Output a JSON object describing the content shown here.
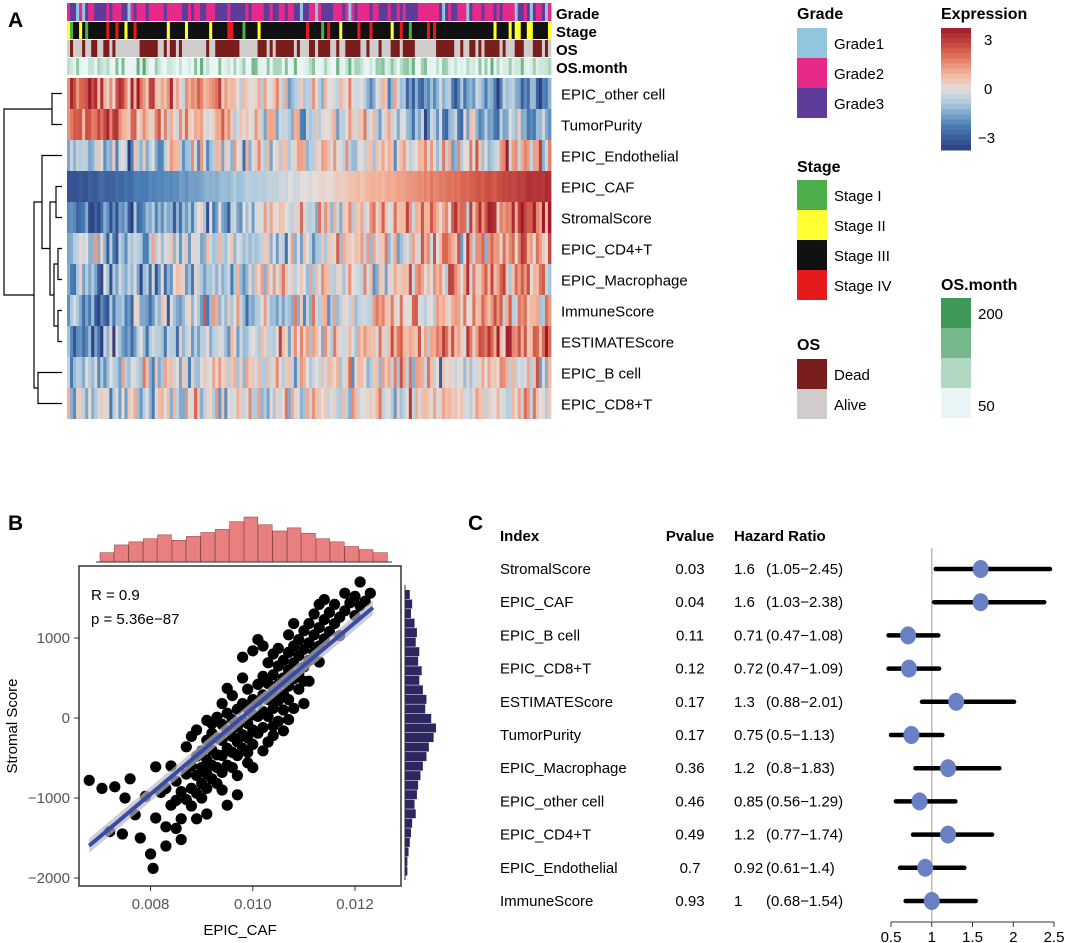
{
  "panels": {
    "a": "A",
    "b": "B",
    "c": "C"
  },
  "colors": {
    "grade1": "#92c5de",
    "grade2": "#e7298a",
    "grade3": "#5e3c99",
    "stage1": "#4daf4a",
    "stage2": "#ffff33",
    "stage3": "#111111",
    "stage4": "#e41a1c",
    "dead": "#7a1d1d",
    "alive": "#d1cccc",
    "expr_low": "#313695",
    "expr_mid": "#e8e8e8",
    "expr_high": "#a50026",
    "os_high": "#3f9a5a",
    "os_low": "#eaf6f5",
    "scatter_point": "#000000",
    "fit_line": "#3b4ba3",
    "top_hist": "#e88080",
    "right_hist": "#2d2760",
    "forest_point": "#6a80c4",
    "forest_line": "#000000",
    "forest_ref": "#c8b6b6"
  },
  "chart_data": [
    {
      "type": "heatmap",
      "panel": "A",
      "title": "",
      "annotation_tracks": [
        "Grade",
        "Stage",
        "OS",
        "OS.month"
      ],
      "rows": [
        "EPIC_other cell",
        "TumorPurity",
        "EPIC_Endothelial",
        "EPIC_CAF",
        "StromalScore",
        "EPIC_CD4+T",
        "EPIC_Macrophage",
        "ImmuneScore",
        "ESTIMATEScore",
        "EPIC_B cell",
        "EPIC_CD8+T"
      ],
      "column_order": "sorted by EPIC_CAF ascending",
      "row_trend_with_EPIC_CAF": [
        -0.7,
        -0.6,
        0.3,
        1.0,
        0.85,
        0.35,
        0.45,
        0.4,
        0.6,
        0.15,
        0.1
      ],
      "legends": {
        "grade": {
          "title": "Grade",
          "items": [
            "Grade1",
            "Grade2",
            "Grade3"
          ]
        },
        "stage": {
          "title": "Stage",
          "items": [
            "Stage I",
            "Stage II",
            "Stage III",
            "Stage IV"
          ]
        },
        "os": {
          "title": "OS",
          "items": [
            "Dead",
            "Alive"
          ]
        },
        "expression": {
          "title": "Expression",
          "ticks": [
            "3",
            "0",
            "−3"
          ],
          "range": [
            -3,
            3
          ]
        },
        "os_month": {
          "title": "OS.month",
          "ticks": [
            "200",
            "50"
          ]
        }
      }
    },
    {
      "type": "scatter",
      "panel": "B",
      "xlabel": "EPIC_CAF",
      "ylabel": "Stromal Score",
      "xlim": [
        0.0066,
        0.0129
      ],
      "ylim": [
        -2100,
        1900
      ],
      "xticks": [
        0.008,
        0.01,
        0.012
      ],
      "xtick_labels": [
        "0.008",
        "0.010",
        "0.012"
      ],
      "yticks": [
        -2000,
        -1000,
        0,
        1000
      ],
      "ytick_labels": [
        "−2000",
        "−1000",
        "0",
        "1000"
      ],
      "annotation": {
        "r": "R = 0.9",
        "p": "p = 5.36e−87"
      },
      "fit": {
        "slope": 536000,
        "intercept": -5240
      },
      "points": [
        [
          0.0068,
          -780
        ],
        [
          0.00705,
          -880
        ],
        [
          0.0073,
          -860
        ],
        [
          0.0072,
          -1420
        ],
        [
          0.00745,
          -1450
        ],
        [
          0.0075,
          -1000
        ],
        [
          0.0076,
          -760
        ],
        [
          0.0077,
          -1210
        ],
        [
          0.0078,
          -1500
        ],
        [
          0.0079,
          -980
        ],
        [
          0.008,
          -1700
        ],
        [
          0.00805,
          -1880
        ],
        [
          0.0081,
          -1250
        ],
        [
          0.0081,
          -610
        ],
        [
          0.0082,
          -930
        ],
        [
          0.0083,
          -880
        ],
        [
          0.0083,
          -1600
        ],
        [
          0.0084,
          -1090
        ],
        [
          0.0084,
          -600
        ],
        [
          0.0085,
          -1380
        ],
        [
          0.0085,
          -1030
        ],
        [
          0.0085,
          -790
        ],
        [
          0.0086,
          -1260
        ],
        [
          0.0086,
          -920
        ],
        [
          0.0087,
          -1020
        ],
        [
          0.0087,
          -700
        ],
        [
          0.0087,
          -360
        ],
        [
          0.0088,
          -1100
        ],
        [
          0.0088,
          -880
        ],
        [
          0.0088,
          -600
        ],
        [
          0.0088,
          -230
        ],
        [
          0.0089,
          -940
        ],
        [
          0.0089,
          -720
        ],
        [
          0.0089,
          -480
        ],
        [
          0.0089,
          -150
        ],
        [
          0.009,
          -1000
        ],
        [
          0.009,
          -820
        ],
        [
          0.009,
          -620
        ],
        [
          0.009,
          -410
        ],
        [
          0.0091,
          -880
        ],
        [
          0.0091,
          -700
        ],
        [
          0.0091,
          -520
        ],
        [
          0.0091,
          -280
        ],
        [
          0.0091,
          -30
        ],
        [
          0.0092,
          -760
        ],
        [
          0.0092,
          -590
        ],
        [
          0.0092,
          -400
        ],
        [
          0.0092,
          -190
        ],
        [
          0.0093,
          -820
        ],
        [
          0.0093,
          -620
        ],
        [
          0.0093,
          -460
        ],
        [
          0.0093,
          -250
        ],
        [
          0.0093,
          10
        ],
        [
          0.0094,
          -680
        ],
        [
          0.0094,
          -470
        ],
        [
          0.0094,
          -280
        ],
        [
          0.0094,
          -80
        ],
        [
          0.0094,
          180
        ],
        [
          0.0095,
          -590
        ],
        [
          0.0095,
          -380
        ],
        [
          0.0095,
          -160
        ],
        [
          0.0095,
          60
        ],
        [
          0.0095,
          -1090
        ],
        [
          0.0096,
          -620
        ],
        [
          0.0096,
          -430
        ],
        [
          0.0096,
          -230
        ],
        [
          0.0096,
          -20
        ],
        [
          0.0096,
          280
        ],
        [
          0.0097,
          -470
        ],
        [
          0.0097,
          -300
        ],
        [
          0.0097,
          -110
        ],
        [
          0.0097,
          110
        ],
        [
          0.0097,
          -960
        ],
        [
          0.0098,
          -380
        ],
        [
          0.0098,
          -210
        ],
        [
          0.0098,
          -30
        ],
        [
          0.0098,
          180
        ],
        [
          0.0098,
          500
        ],
        [
          0.0099,
          -430
        ],
        [
          0.0099,
          -250
        ],
        [
          0.0099,
          -70
        ],
        [
          0.0099,
          120
        ],
        [
          0.0099,
          360
        ],
        [
          0.01,
          -330
        ],
        [
          0.01,
          -150
        ],
        [
          0.01,
          40
        ],
        [
          0.01,
          230
        ],
        [
          0.01,
          -620
        ],
        [
          0.0101,
          -190
        ],
        [
          0.0101,
          20
        ],
        [
          0.0101,
          210
        ],
        [
          0.0101,
          420
        ],
        [
          0.0101,
          980
        ],
        [
          0.0102,
          -120
        ],
        [
          0.0102,
          80
        ],
        [
          0.0102,
          290
        ],
        [
          0.0102,
          520
        ],
        [
          0.0102,
          -410
        ],
        [
          0.0103,
          20
        ],
        [
          0.0103,
          230
        ],
        [
          0.0103,
          430
        ],
        [
          0.0103,
          690
        ],
        [
          0.0103,
          -300
        ],
        [
          0.0104,
          120
        ],
        [
          0.0104,
          320
        ],
        [
          0.0104,
          540
        ],
        [
          0.0104,
          -100
        ],
        [
          0.0105,
          220
        ],
        [
          0.0105,
          420
        ],
        [
          0.0105,
          650
        ],
        [
          0.0105,
          870
        ],
        [
          0.0105,
          -40
        ],
        [
          0.0106,
          300
        ],
        [
          0.0106,
          500
        ],
        [
          0.0106,
          720
        ],
        [
          0.0106,
          100
        ],
        [
          0.0107,
          400
        ],
        [
          0.0107,
          600
        ],
        [
          0.0107,
          820
        ],
        [
          0.0107,
          1040
        ],
        [
          0.0107,
          230
        ],
        [
          0.0108,
          490
        ],
        [
          0.0108,
          690
        ],
        [
          0.0108,
          900
        ],
        [
          0.0108,
          1180
        ],
        [
          0.0109,
          560
        ],
        [
          0.0109,
          780
        ],
        [
          0.0109,
          980
        ],
        [
          0.0109,
          360
        ],
        [
          0.011,
          640
        ],
        [
          0.011,
          860
        ],
        [
          0.011,
          1090
        ],
        [
          0.011,
          460
        ],
        [
          0.0111,
          720
        ],
        [
          0.0111,
          940
        ],
        [
          0.0111,
          1180
        ],
        [
          0.0112,
          820
        ],
        [
          0.0112,
          1040
        ],
        [
          0.0112,
          1300
        ],
        [
          0.0113,
          900
        ],
        [
          0.0113,
          1130
        ],
        [
          0.0113,
          700
        ],
        [
          0.0114,
          990
        ],
        [
          0.0114,
          1230
        ],
        [
          0.0114,
          1480
        ],
        [
          0.0115,
          1080
        ],
        [
          0.0115,
          1320
        ],
        [
          0.0116,
          1180
        ],
        [
          0.0116,
          1420
        ],
        [
          0.0117,
          1260
        ],
        [
          0.0117,
          1030
        ],
        [
          0.0118,
          1340
        ],
        [
          0.0118,
          1560
        ],
        [
          0.0119,
          1440
        ],
        [
          0.012,
          1280
        ],
        [
          0.012,
          1520
        ],
        [
          0.0121,
          1400
        ],
        [
          0.0121,
          1700
        ],
        [
          0.0122,
          1460
        ],
        [
          0.0123,
          1560
        ],
        [
          0.0091,
          -1200
        ],
        [
          0.0089,
          -1260
        ],
        [
          0.0094,
          -900
        ],
        [
          0.0097,
          -720
        ],
        [
          0.0099,
          -560
        ],
        [
          0.0104,
          -220
        ],
        [
          0.0106,
          -160
        ],
        [
          0.0108,
          120
        ],
        [
          0.011,
          180
        ],
        [
          0.0086,
          -1520
        ],
        [
          0.0083,
          -1360
        ],
        [
          0.0092,
          -70
        ],
        [
          0.0095,
          370
        ],
        [
          0.0098,
          760
        ],
        [
          0.01,
          840
        ],
        [
          0.0102,
          900
        ],
        [
          0.0104,
          800
        ],
        [
          0.0107,
          -20
        ],
        [
          0.0111,
          460
        ],
        [
          0.0113,
          1420
        ]
      ],
      "top_histogram": [
        12,
        22,
        26,
        30,
        35,
        28,
        33,
        38,
        42,
        52,
        58,
        48,
        40,
        44,
        37,
        30,
        26,
        20,
        16,
        12
      ],
      "right_histogram": [
        4,
        6,
        5,
        8,
        10,
        9,
        12,
        11,
        14,
        12,
        15,
        18,
        17,
        22,
        26,
        24,
        20,
        18,
        15,
        13,
        11,
        10,
        8,
        9,
        6,
        5,
        4,
        3,
        2,
        2
      ]
    },
    {
      "type": "forest",
      "panel": "C",
      "headers": {
        "index": "Index",
        "pvalue": "Pvalue",
        "hr": "Hazard Ratio"
      },
      "xlim": [
        0.5,
        2.5
      ],
      "xticks": [
        0.5,
        1,
        1.5,
        2,
        2.5
      ],
      "xtick_labels": [
        "0.5",
        "1",
        "1.5",
        "2",
        "2.5"
      ],
      "reference": 1,
      "rows": [
        {
          "index": "StromalScore",
          "pvalue": "0.03",
          "hr": "1.6",
          "ci": "(1.05−2.45)",
          "est": 1.6,
          "lo": 1.05,
          "hi": 2.45
        },
        {
          "index": "EPIC_CAF",
          "pvalue": "0.04",
          "hr": "1.6",
          "ci": "(1.03−2.38)",
          "est": 1.6,
          "lo": 1.03,
          "hi": 2.38
        },
        {
          "index": "EPIC_B cell",
          "pvalue": "0.11",
          "hr": "0.71",
          "ci": "(0.47−1.08)",
          "est": 0.71,
          "lo": 0.47,
          "hi": 1.08
        },
        {
          "index": "EPIC_CD8+T",
          "pvalue": "0.12",
          "hr": "0.72",
          "ci": "(0.47−1.09)",
          "est": 0.72,
          "lo": 0.47,
          "hi": 1.09
        },
        {
          "index": "ESTIMATEScore",
          "pvalue": "0.17",
          "hr": "1.3",
          "ci": "(0.88−2.01)",
          "est": 1.3,
          "lo": 0.88,
          "hi": 2.01
        },
        {
          "index": "TumorPurity",
          "pvalue": "0.17",
          "hr": "0.75",
          "ci": "(0.5−1.13)",
          "est": 0.75,
          "lo": 0.5,
          "hi": 1.13
        },
        {
          "index": "EPIC_Macrophage",
          "pvalue": "0.36",
          "hr": "1.2",
          "ci": "(0.8−1.83)",
          "est": 1.2,
          "lo": 0.8,
          "hi": 1.83
        },
        {
          "index": "EPIC_other cell",
          "pvalue": "0.46",
          "hr": "0.85",
          "ci": "(0.56−1.29)",
          "est": 0.85,
          "lo": 0.56,
          "hi": 1.29
        },
        {
          "index": "EPIC_CD4+T",
          "pvalue": "0.49",
          "hr": "1.2",
          "ci": "(0.77−1.74)",
          "est": 1.2,
          "lo": 0.77,
          "hi": 1.74
        },
        {
          "index": "EPIC_Endothelial",
          "pvalue": "0.7",
          "hr": "0.92",
          "ci": "(0.61−1.4)",
          "est": 0.92,
          "lo": 0.61,
          "hi": 1.4
        },
        {
          "index": "ImmuneScore",
          "pvalue": "0.93",
          "hr": "1",
          "ci": "(0.68−1.54)",
          "est": 1.0,
          "lo": 0.68,
          "hi": 1.54
        }
      ]
    }
  ]
}
